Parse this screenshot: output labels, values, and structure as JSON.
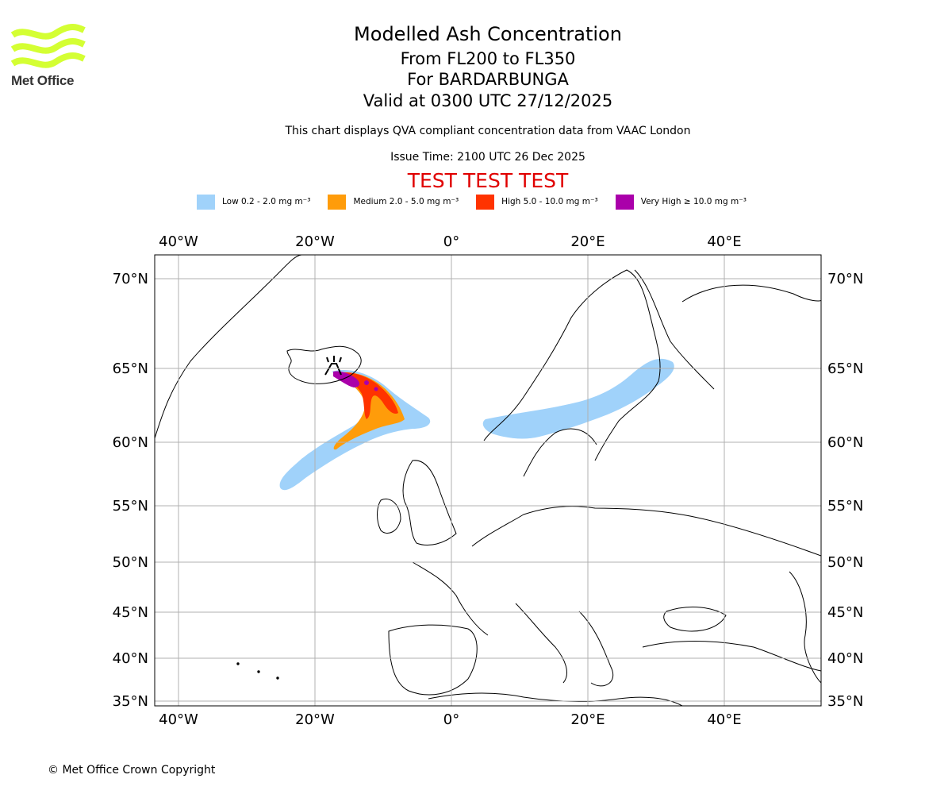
{
  "logo": {
    "name": "Met Office",
    "icon": "met-office-wave-logo",
    "color": "#d4ff33"
  },
  "title": {
    "line1": "Modelled Ash Concentration",
    "line2": "From FL200 to FL350",
    "line3": "For BARDARBUNGA",
    "line4": "Valid at 0300 UTC 27/12/2025"
  },
  "subtitle": "This chart displays QVA compliant concentration data from VAAC London",
  "issue_time": "Issue Time: 2100 UTC 26 Dec 2025",
  "test_banner": "TEST TEST TEST",
  "legend": [
    {
      "label": "Low 0.2 - 2.0 mg m⁻³",
      "color": "#a0d2fa"
    },
    {
      "label": "Medium 2.0 - 5.0 mg m⁻³",
      "color": "#ff9c0a"
    },
    {
      "label": "High 5.0 - 10.0 mg m⁻³",
      "color": "#ff3300"
    },
    {
      "label": "Very High ≥ 10.0 mg m⁻³",
      "color": "#aa00aa"
    }
  ],
  "map": {
    "lon_ticks": [
      "40°W",
      "20°W",
      "0°",
      "20°E",
      "40°E"
    ],
    "lat_ticks": [
      "70°N",
      "65°N",
      "60°N",
      "55°N",
      "50°N",
      "45°N",
      "40°N",
      "35°N"
    ],
    "volcano_icon": "volcano-icon"
  },
  "copyright": "© Met Office Crown Copyright"
}
